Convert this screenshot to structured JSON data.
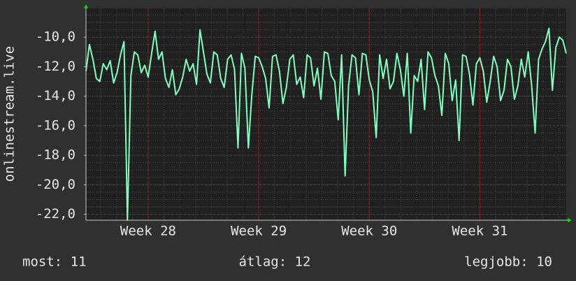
{
  "chart_data": {
    "type": "line",
    "y_label": "onlinestream.live",
    "x": [
      0,
      1,
      2,
      3,
      4,
      5,
      6,
      7,
      8,
      9,
      10,
      11,
      12,
      13,
      14,
      15,
      16,
      17,
      18,
      19,
      20,
      21,
      22,
      23,
      24,
      25,
      26,
      27,
      28,
      29,
      30,
      31,
      32,
      33,
      34,
      35,
      36,
      37,
      38,
      39,
      40,
      41,
      42,
      43,
      44,
      45,
      46,
      47,
      48,
      49,
      50,
      51,
      52,
      53,
      54,
      55,
      56,
      57,
      58,
      59,
      60,
      61,
      62,
      63,
      64,
      65,
      66,
      67,
      68,
      69,
      70,
      71,
      72,
      73,
      74,
      75,
      76,
      77,
      78,
      79,
      80,
      81,
      82,
      83,
      84,
      85,
      86,
      87,
      88,
      89,
      90,
      91,
      92,
      93,
      94,
      95,
      96,
      97,
      98,
      99,
      100,
      101,
      102,
      103,
      104,
      105,
      106,
      107,
      108,
      109,
      110,
      111,
      112,
      113,
      114,
      115,
      116,
      117,
      118,
      119,
      120,
      121,
      122,
      123,
      124,
      125,
      126,
      127,
      128,
      129,
      130,
      131,
      132,
      133,
      134,
      135,
      136,
      137,
      138,
      139
    ],
    "series": [
      {
        "name": "onlinestream.live",
        "color": "#80ffc0",
        "values": [
          -12.3,
          -10.5,
          -11.5,
          -12.8,
          -13,
          -11.8,
          -12.2,
          -11.6,
          -13.1,
          -12.4,
          -11.2,
          -10.3,
          -22.4,
          -12.6,
          -11,
          -11.2,
          -12.4,
          -11.9,
          -12.7,
          -11.1,
          -9.6,
          -11.5,
          -11,
          -12.8,
          -13.4,
          -12.2,
          -13.9,
          -13.5,
          -12.7,
          -11.5,
          -12.3,
          -11.8,
          -13.2,
          -9.5,
          -11,
          -12.5,
          -13.1,
          -11,
          -11.2,
          -12.8,
          -13.4,
          -11.5,
          -11.2,
          -12.2,
          -17.5,
          -11.1,
          -12.1,
          -17.5,
          -13.9,
          -11.3,
          -11.4,
          -12,
          -12.8,
          -14.8,
          -11.3,
          -11.2,
          -12.3,
          -14.5,
          -13.4,
          -11.5,
          -11.2,
          -13.2,
          -12.7,
          -14.1,
          -11.2,
          -11.4,
          -13.3,
          -12.1,
          -14.2,
          -11,
          -11.1,
          -12.6,
          -13,
          -15.6,
          -11.2,
          -19.4,
          -13.3,
          -11.2,
          -11.4,
          -13.9,
          -11.1,
          -11.2,
          -12.9,
          -13.7,
          -16.8,
          -11.2,
          -12.8,
          -11.5,
          -13.5,
          -13,
          -11.1,
          -12.2,
          -14,
          -11.1,
          -16.5,
          -12.6,
          -13,
          -11.5,
          -14.9,
          -11,
          -11.4,
          -12.6,
          -13.3,
          -15.3,
          -11.1,
          -11.8,
          -14.3,
          -12.9,
          -17,
          -11.2,
          -11.3,
          -12.5,
          -14.6,
          -11.8,
          -11.4,
          -12.3,
          -14.4,
          -13,
          -11.3,
          -12,
          -14.3,
          -13.6,
          -11.5,
          -12,
          -14.2,
          -13.3,
          -11.5,
          -12.7,
          -11,
          -13.3,
          -16.5,
          -11.5,
          -10.8,
          -10.3,
          -9.4,
          -13.6,
          -10.7,
          -10,
          -10.2,
          -11.1
        ]
      }
    ],
    "xlim": [
      0,
      139
    ],
    "xticks": [
      {
        "value": 18,
        "label": "Week 28"
      },
      {
        "value": 50,
        "label": "Week 29"
      },
      {
        "value": 82,
        "label": "Week 30"
      },
      {
        "value": 114,
        "label": "Week 31"
      }
    ],
    "ylim": [
      -22.4,
      -8.05
    ],
    "yticks": [
      {
        "value": -22,
        "label": "-22,0"
      },
      {
        "value": -20,
        "label": "-20,0"
      },
      {
        "value": -18,
        "label": "-18,0"
      },
      {
        "value": -16,
        "label": "-16,0"
      },
      {
        "value": -14,
        "label": "-14,0"
      },
      {
        "value": -12,
        "label": "-12,0"
      },
      {
        "value": -10,
        "label": "-10,0"
      }
    ],
    "grid": true,
    "footer": [
      "most: 11",
      "átlag: 12",
      "legjobb: 10"
    ]
  }
}
